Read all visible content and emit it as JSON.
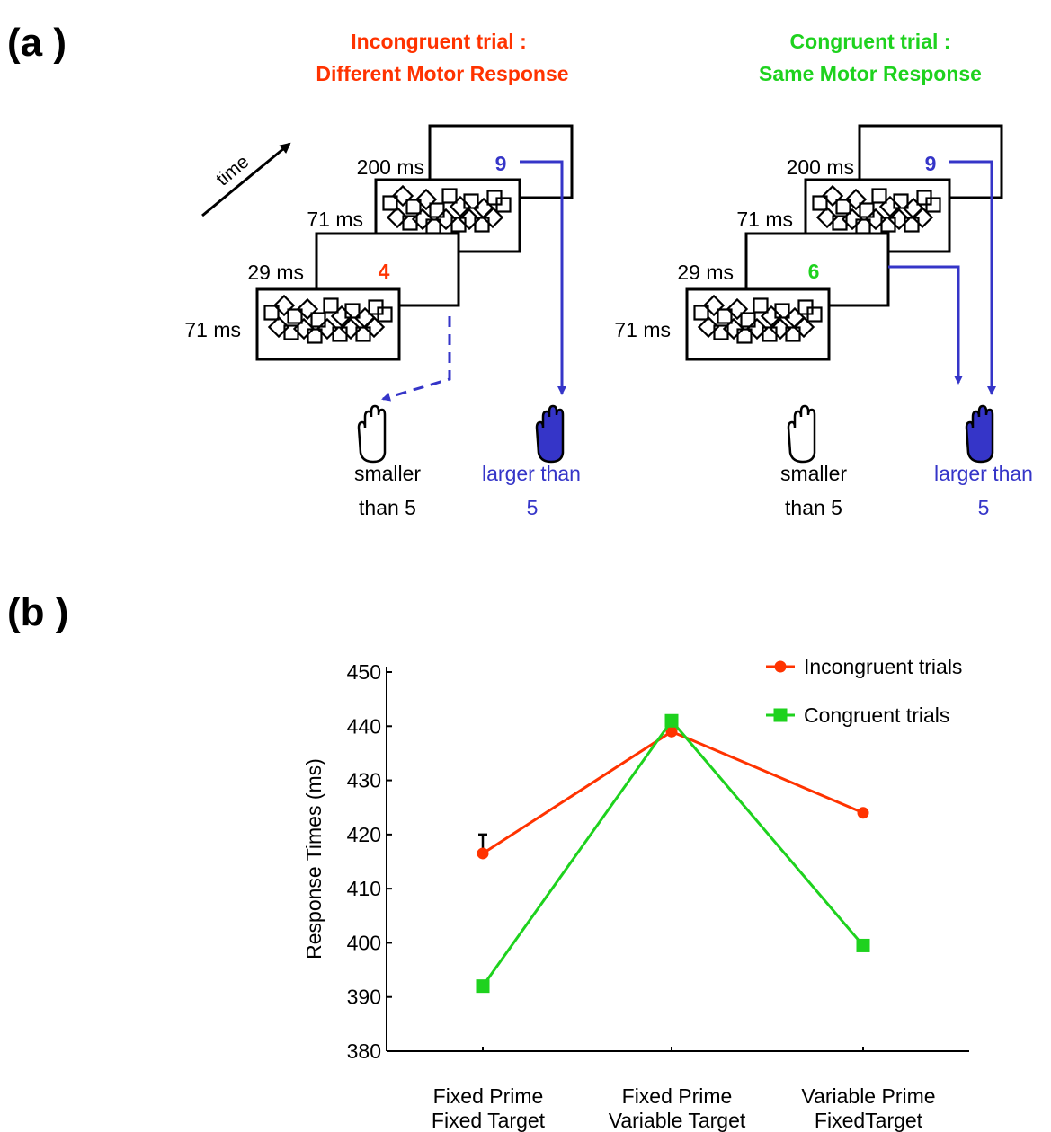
{
  "panel_a": {
    "label": "(a )",
    "incongruent": {
      "title_line1": "Incongruent trial :",
      "title_line2": "Different Motor Response",
      "prime_digit": "4",
      "target_digit": "9"
    },
    "congruent": {
      "title_line1": "Congruent trial :",
      "title_line2": "Same Motor Response",
      "prime_digit": "6",
      "target_digit": "9"
    },
    "time_label": "time",
    "durations": {
      "target": "200 ms",
      "mask2": "71 ms",
      "prime": "29 ms",
      "mask1": "71 ms"
    },
    "responses": {
      "left_line1": "smaller",
      "left_line2": "than 5",
      "right_line1": "larger than",
      "right_line2": "5"
    },
    "colors": {
      "incongruent": "#ff3300",
      "congruent": "#1ed21e",
      "response": "#3535c8"
    }
  },
  "panel_b": {
    "label": "(b )"
  },
  "chart_data": {
    "type": "line",
    "categories": [
      "Fixed Prime\nFixed Target",
      "Fixed Prime\nVariable Target",
      "Variable Prime\nFixedTarget"
    ],
    "tick_label_lines": [
      [
        "Fixed Prime",
        "Fixed Target"
      ],
      [
        "Fixed Prime",
        "Variable Target"
      ],
      [
        "Variable Prime",
        "FixedTarget"
      ]
    ],
    "series": [
      {
        "name": "Incongruent trials",
        "values": [
          416.5,
          439,
          424
        ],
        "color": "#ff3300",
        "marker": "circle",
        "error": [
          3.5,
          null,
          null
        ]
      },
      {
        "name": "Congruent trials",
        "values": [
          392,
          441,
          399.5
        ],
        "color": "#1ed21e",
        "marker": "square",
        "error": [
          null,
          null,
          null
        ]
      }
    ],
    "ylabel": "Response Times (ms)",
    "ylim": [
      380,
      450
    ],
    "yticks": [
      380,
      390,
      400,
      410,
      420,
      430,
      440,
      450
    ],
    "grid": false,
    "legend_position": "top-right"
  }
}
